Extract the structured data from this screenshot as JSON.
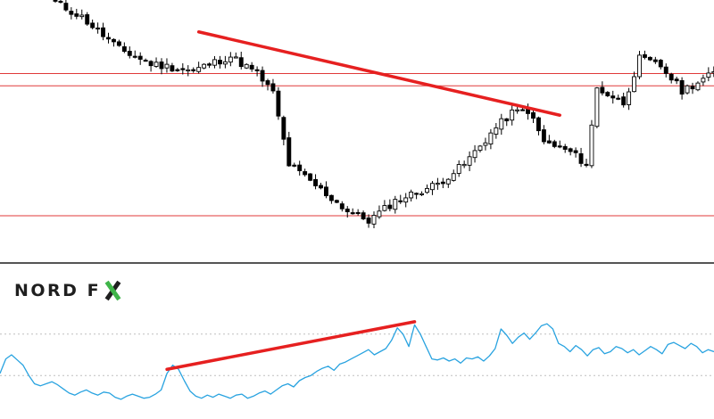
{
  "brand": {
    "name": "NORD F",
    "mark": "X"
  },
  "colors": {
    "candle_up": "#ffffff",
    "candle_down": "#000000",
    "candle_outline": "#000000",
    "horizontal_level": "#e03a3a",
    "trendline": "#e62020",
    "rsi_line": "#29a3e0",
    "separator": "#555555",
    "dotted_level": "#bfbfbf",
    "logo_text": "#1f1f1f",
    "logo_accent": "#3fb549"
  },
  "chart_data": [
    {
      "type": "candlestick",
      "title": "",
      "xlabel": "",
      "ylabel": "",
      "axis_labels_shown": false,
      "ylim": [
        0,
        100
      ],
      "bar_count": 125,
      "anchor_closes": [
        [
          0,
          99
        ],
        [
          5,
          93
        ],
        [
          12,
          80
        ],
        [
          18,
          74
        ],
        [
          26,
          71
        ],
        [
          28,
          73
        ],
        [
          33,
          77
        ],
        [
          38,
          70
        ],
        [
          41,
          62
        ],
        [
          44,
          33
        ],
        [
          48,
          26
        ],
        [
          55,
          14
        ],
        [
          59,
          10
        ],
        [
          64,
          18
        ],
        [
          72,
          25
        ],
        [
          77,
          33
        ],
        [
          83,
          48
        ],
        [
          86,
          54
        ],
        [
          89,
          55
        ],
        [
          92,
          42
        ],
        [
          97,
          38
        ],
        [
          100,
          33
        ],
        [
          102,
          64
        ],
        [
          107,
          58
        ],
        [
          110,
          76
        ],
        [
          114,
          73
        ],
        [
          118,
          63
        ],
        [
          124,
          70
        ]
      ],
      "horizontal_levels": [
        70,
        65,
        12
      ],
      "trendlines": [
        {
          "from": [
            27,
            87
          ],
          "to": [
            95,
            53
          ]
        }
      ]
    },
    {
      "type": "line",
      "title": "",
      "xlabel": "",
      "ylabel": "",
      "axis_labels_shown": false,
      "ylim": [
        0,
        100
      ],
      "series": [
        {
          "values": [
            32,
            46,
            50,
            45,
            40,
            30,
            22,
            20,
            22,
            24,
            21,
            17,
            13,
            11,
            14,
            16,
            13,
            11,
            14,
            13,
            9,
            7,
            10,
            12,
            10,
            8,
            9,
            12,
            16,
            32,
            40,
            36,
            25,
            15,
            10,
            8,
            11,
            9,
            12,
            10,
            8,
            11,
            12,
            8,
            10,
            13,
            15,
            12,
            16,
            20,
            22,
            19,
            25,
            28,
            30,
            34,
            37,
            39,
            35,
            41,
            43,
            46,
            49,
            52,
            55,
            50,
            53,
            56,
            64,
            76,
            70,
            58,
            79,
            70,
            58,
            46,
            45,
            47,
            44,
            46,
            42,
            47,
            46,
            48,
            44,
            49,
            56,
            75,
            69,
            61,
            67,
            71,
            65,
            71,
            78,
            80,
            75,
            61,
            58,
            53,
            59,
            55,
            49,
            55,
            57,
            51,
            53,
            58,
            56,
            52,
            55,
            50,
            54,
            58,
            55,
            51,
            60,
            62,
            59,
            56,
            61,
            58,
            52,
            55,
            53
          ]
        }
      ],
      "dotted_levels": [
        70,
        30
      ],
      "trendlines": [
        {
          "from": [
            29,
            36
          ],
          "to": [
            72,
            82
          ]
        }
      ]
    }
  ]
}
